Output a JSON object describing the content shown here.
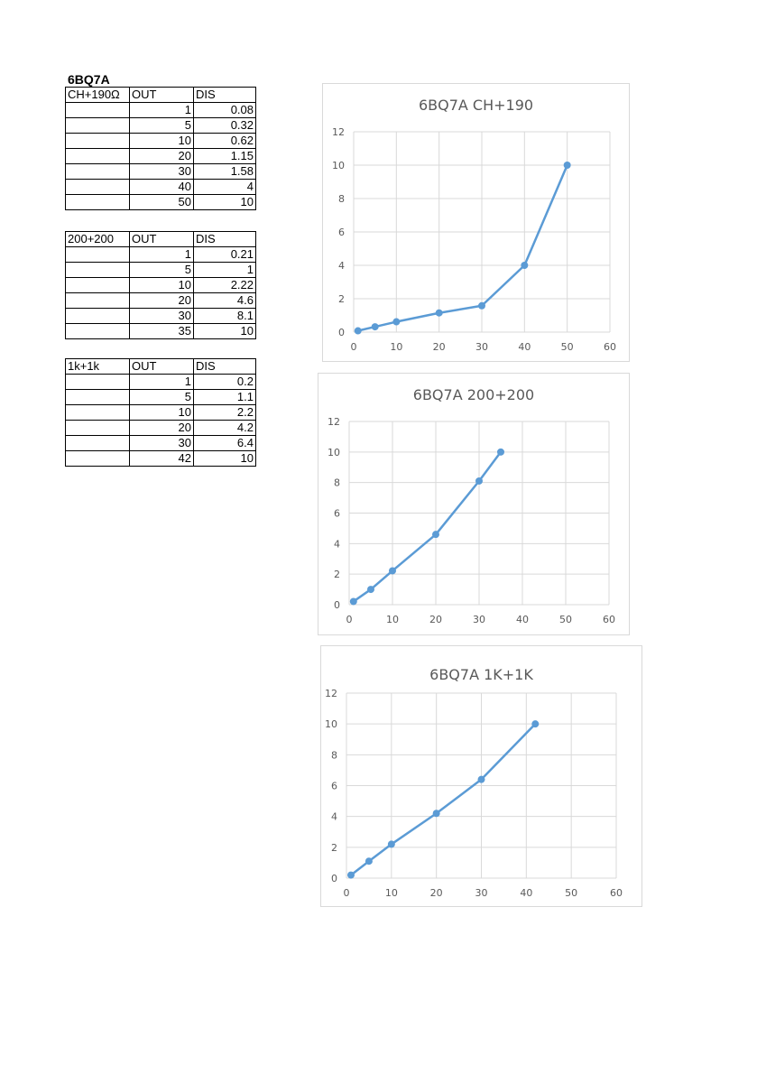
{
  "sheet": {
    "title": "6BQ7A",
    "tables": [
      {
        "headers": [
          "CH+190Ω",
          "OUT",
          "DIS"
        ],
        "rows": [
          [
            "",
            "1",
            "0.08"
          ],
          [
            "",
            "5",
            "0.32"
          ],
          [
            "",
            "10",
            "0.62"
          ],
          [
            "",
            "20",
            "1.15"
          ],
          [
            "",
            "30",
            "1.58"
          ],
          [
            "",
            "40",
            "4"
          ],
          [
            "",
            "50",
            "10"
          ]
        ]
      },
      {
        "headers": [
          "200+200",
          "OUT",
          "DIS"
        ],
        "rows": [
          [
            "",
            "1",
            "0.21"
          ],
          [
            "",
            "5",
            "1"
          ],
          [
            "",
            "10",
            "2.22"
          ],
          [
            "",
            "20",
            "4.6"
          ],
          [
            "",
            "30",
            "8.1"
          ],
          [
            "",
            "35",
            "10"
          ]
        ]
      },
      {
        "headers": [
          "1k+1k",
          "OUT",
          "DIS"
        ],
        "rows": [
          [
            "",
            "1",
            "0.2"
          ],
          [
            "",
            "5",
            "1.1"
          ],
          [
            "",
            "10",
            "2.2"
          ],
          [
            "",
            "20",
            "4.2"
          ],
          [
            "",
            "30",
            "6.4"
          ],
          [
            "",
            "42",
            "10"
          ]
        ]
      }
    ]
  },
  "colors": {
    "series": "#5b9bd5",
    "grid": "#d9d9d9",
    "axis_text": "#595959",
    "title": "#595959"
  },
  "chart_data": [
    {
      "type": "line",
      "title": "6BQ7A CH+190",
      "x": [
        1,
        5,
        10,
        20,
        30,
        40,
        50
      ],
      "series": [
        {
          "values": [
            0.08,
            0.32,
            0.62,
            1.15,
            1.58,
            4,
            10
          ]
        }
      ],
      "xlim": [
        0,
        60
      ],
      "ylim": [
        0,
        12
      ],
      "xticks": [
        0,
        10,
        20,
        30,
        40,
        50,
        60
      ],
      "yticks": [
        0,
        2,
        4,
        6,
        8,
        10,
        12
      ],
      "grid": true,
      "legend": "none"
    },
    {
      "type": "line",
      "title": "6BQ7A 200+200",
      "x": [
        1,
        5,
        10,
        20,
        30,
        35
      ],
      "series": [
        {
          "values": [
            0.21,
            1,
            2.22,
            4.6,
            8.1,
            10
          ]
        }
      ],
      "xlim": [
        0,
        60
      ],
      "ylim": [
        0,
        12
      ],
      "xticks": [
        0,
        10,
        20,
        30,
        40,
        50,
        60
      ],
      "yticks": [
        0,
        2,
        4,
        6,
        8,
        10,
        12
      ],
      "grid": true,
      "legend": "none"
    },
    {
      "type": "line",
      "title": "6BQ7A 1K+1K",
      "x": [
        1,
        5,
        10,
        20,
        30,
        42
      ],
      "series": [
        {
          "values": [
            0.2,
            1.1,
            2.2,
            4.2,
            6.4,
            10
          ]
        }
      ],
      "xlim": [
        0,
        60
      ],
      "ylim": [
        0,
        12
      ],
      "xticks": [
        0,
        10,
        20,
        30,
        40,
        50,
        60
      ],
      "yticks": [
        0,
        2,
        4,
        6,
        8,
        10,
        12
      ],
      "grid": true,
      "legend": "none"
    }
  ]
}
